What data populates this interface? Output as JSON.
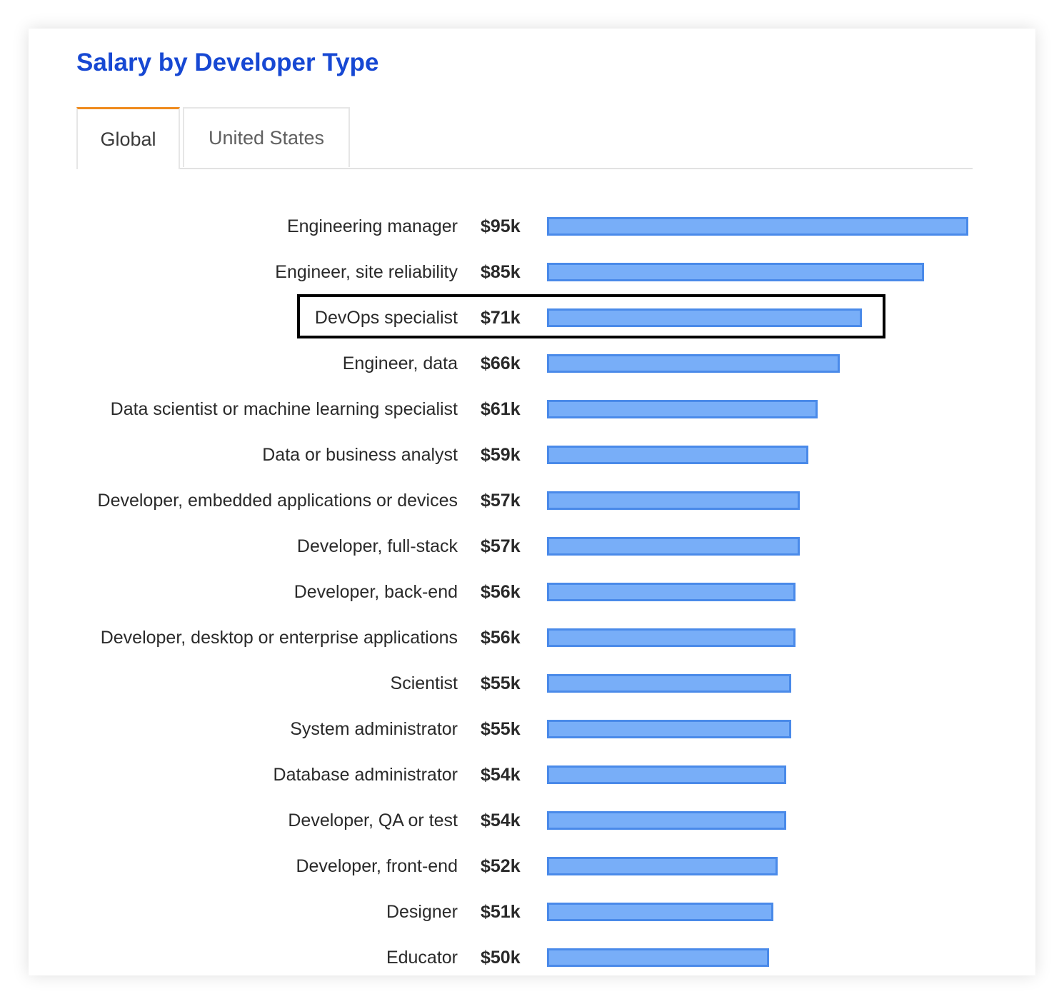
{
  "title": "Salary by Developer Type",
  "tabs": [
    {
      "label": "Global",
      "active": true
    },
    {
      "label": "United States",
      "active": false
    }
  ],
  "colors": {
    "title": "#1748d3",
    "bar_fill": "#78aef8",
    "bar_border": "#4a8ae9",
    "active_tab": "#ef8a1c"
  },
  "highlighted_category": "DevOps specialist",
  "chart_data": {
    "type": "bar",
    "orientation": "horizontal",
    "categories": [
      "Engineering manager",
      "Engineer, site reliability",
      "DevOps specialist",
      "Engineer, data",
      "Data scientist or machine learning specialist",
      "Data or business analyst",
      "Developer, embedded applications or devices",
      "Developer, full-stack",
      "Developer, back-end",
      "Developer, desktop or enterprise applications",
      "Scientist",
      "System administrator",
      "Database administrator",
      "Developer, QA or test",
      "Developer, front-end",
      "Designer",
      "Educator"
    ],
    "values": [
      95,
      85,
      71,
      66,
      61,
      59,
      57,
      57,
      56,
      56,
      55,
      55,
      54,
      54,
      52,
      51,
      50
    ],
    "value_labels": [
      "$95k",
      "$85k",
      "$71k",
      "$66k",
      "$61k",
      "$59k",
      "$57k",
      "$57k",
      "$56k",
      "$56k",
      "$55k",
      "$55k",
      "$54k",
      "$54k",
      "$52k",
      "$51k",
      "$50k"
    ],
    "unit": "USD thousands",
    "xlim": [
      0,
      95
    ],
    "grid": false
  }
}
